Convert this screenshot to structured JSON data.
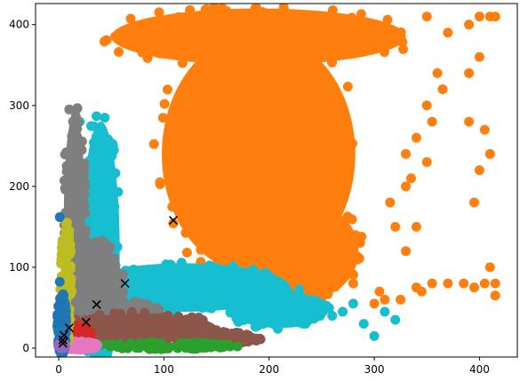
{
  "chart_data": {
    "type": "scatter",
    "title": "",
    "xlabel": "",
    "ylabel": "",
    "xlim": [
      -22,
      436
    ],
    "ylim": [
      -11,
      426
    ],
    "x_ticks": [
      0,
      100,
      200,
      300,
      400
    ],
    "y_ticks": [
      0,
      100,
      200,
      300,
      400
    ],
    "x_tick_labels": [
      "0",
      "100",
      "200",
      "300",
      "400"
    ],
    "y_tick_labels": [
      "0",
      "100",
      "200",
      "300",
      "400"
    ],
    "grid": false,
    "legend": "none",
    "series": [
      {
        "color": "#ff7f0e",
        "regions": [
          {
            "cx": 190,
            "cy": 240,
            "rx": 92,
            "ry": 150
          },
          {
            "cx": 190,
            "cy": 385,
            "rx": 140,
            "ry": 35
          },
          {
            "cx": 235,
            "cy": 120,
            "rx": 50,
            "ry": 60
          }
        ],
        "outliers": [
          [
            230,
            115
          ],
          [
            260,
            95
          ],
          [
            280,
            80
          ],
          [
            305,
            70
          ],
          [
            325,
            60
          ],
          [
            300,
            55
          ],
          [
            340,
            75
          ],
          [
            330,
            120
          ],
          [
            320,
            150
          ],
          [
            315,
            180
          ],
          [
            335,
            210
          ],
          [
            330,
            240
          ],
          [
            350,
            230
          ],
          [
            340,
            260
          ],
          [
            355,
            280
          ],
          [
            350,
            300
          ],
          [
            365,
            320
          ],
          [
            360,
            340
          ],
          [
            370,
            390
          ],
          [
            350,
            410
          ],
          [
            400,
            410
          ],
          [
            410,
            410
          ],
          [
            415,
            410
          ],
          [
            390,
            400
          ],
          [
            400,
            360
          ],
          [
            390,
            340
          ],
          [
            390,
            280
          ],
          [
            405,
            270
          ],
          [
            410,
            240
          ],
          [
            400,
            220
          ],
          [
            395,
            180
          ],
          [
            345,
            70
          ],
          [
            355,
            80
          ],
          [
            370,
            80
          ],
          [
            385,
            80
          ],
          [
            395,
            75
          ],
          [
            405,
            80
          ],
          [
            415,
            80
          ],
          [
            410,
            100
          ],
          [
            415,
            65
          ],
          [
            310,
            60
          ],
          [
            340,
            150
          ],
          [
            330,
            200
          ]
        ]
      },
      {
        "color": "#17becf",
        "regions": [
          {
            "cx": 40,
            "cy": 120,
            "rx": 18,
            "ry": 160
          },
          {
            "cx": 120,
            "cy": 75,
            "rx": 100,
            "ry": 30
          },
          {
            "cx": 210,
            "cy": 45,
            "rx": 45,
            "ry": 20
          }
        ],
        "outliers": [
          [
            250,
            50
          ],
          [
            270,
            45
          ],
          [
            290,
            30
          ],
          [
            310,
            45
          ],
          [
            320,
            35
          ],
          [
            300,
            15
          ],
          [
            280,
            55
          ],
          [
            260,
            40
          ],
          [
            240,
            60
          ],
          [
            20,
            280
          ]
        ]
      },
      {
        "color": "#7f7f7f",
        "regions": [
          {
            "cx": 15,
            "cy": 170,
            "rx": 10,
            "ry": 120
          },
          {
            "cx": 35,
            "cy": 80,
            "rx": 25,
            "ry": 50
          },
          {
            "cx": 60,
            "cy": 40,
            "rx": 35,
            "ry": 20
          }
        ],
        "outliers": [
          [
            10,
            295
          ],
          [
            15,
            260
          ],
          [
            12,
            240
          ],
          [
            20,
            230
          ],
          [
            8,
            200
          ]
        ]
      },
      {
        "color": "#8c564b",
        "regions": [
          {
            "cx": 80,
            "cy": 25,
            "rx": 70,
            "ry": 18
          },
          {
            "cx": 150,
            "cy": 12,
            "rx": 40,
            "ry": 8
          }
        ],
        "outliers": [
          [
            170,
            10
          ],
          [
            185,
            12
          ],
          [
            180,
            8
          ]
        ]
      },
      {
        "color": "#2ca02c",
        "regions": [
          {
            "cx": 100,
            "cy": 3,
            "rx": 60,
            "ry": 4
          }
        ],
        "outliers": [
          [
            150,
            2
          ],
          [
            160,
            4
          ],
          [
            170,
            2
          ],
          [
            130,
            3
          ]
        ]
      },
      {
        "color": "#d62728",
        "regions": [
          {
            "cx": 20,
            "cy": 15,
            "rx": 10,
            "ry": 12
          }
        ],
        "outliers": [
          [
            25,
            10
          ],
          [
            15,
            25
          ]
        ]
      },
      {
        "color": "#e377c2",
        "regions": [
          {
            "cx": 18,
            "cy": 3,
            "rx": 18,
            "ry": 5
          }
        ],
        "outliers": [
          [
            30,
            2
          ],
          [
            35,
            4
          ]
        ]
      },
      {
        "color": "#bcbd22",
        "regions": [
          {
            "cx": 7,
            "cy": 80,
            "rx": 5,
            "ry": 70
          }
        ],
        "outliers": [
          [
            8,
            155
          ],
          [
            10,
            145
          ]
        ]
      },
      {
        "color": "#1f77b4",
        "regions": [
          {
            "cx": 3,
            "cy": 30,
            "rx": 4,
            "ry": 35
          }
        ],
        "outliers": [
          [
            1,
            162
          ],
          [
            1,
            82
          ],
          [
            2,
            55
          ]
        ]
      },
      {
        "color": "#9467bd",
        "regions": [
          {
            "cx": 3,
            "cy": 3,
            "rx": 3,
            "ry": 3
          }
        ],
        "outliers": []
      }
    ],
    "centroids": {
      "marker": "x",
      "color": "#000000",
      "points": [
        [
          109,
          158
        ],
        [
          63,
          80
        ],
        [
          36,
          54
        ],
        [
          26,
          32
        ],
        [
          10,
          25
        ],
        [
          5,
          16
        ],
        [
          4,
          10
        ],
        [
          4,
          6
        ]
      ]
    }
  }
}
